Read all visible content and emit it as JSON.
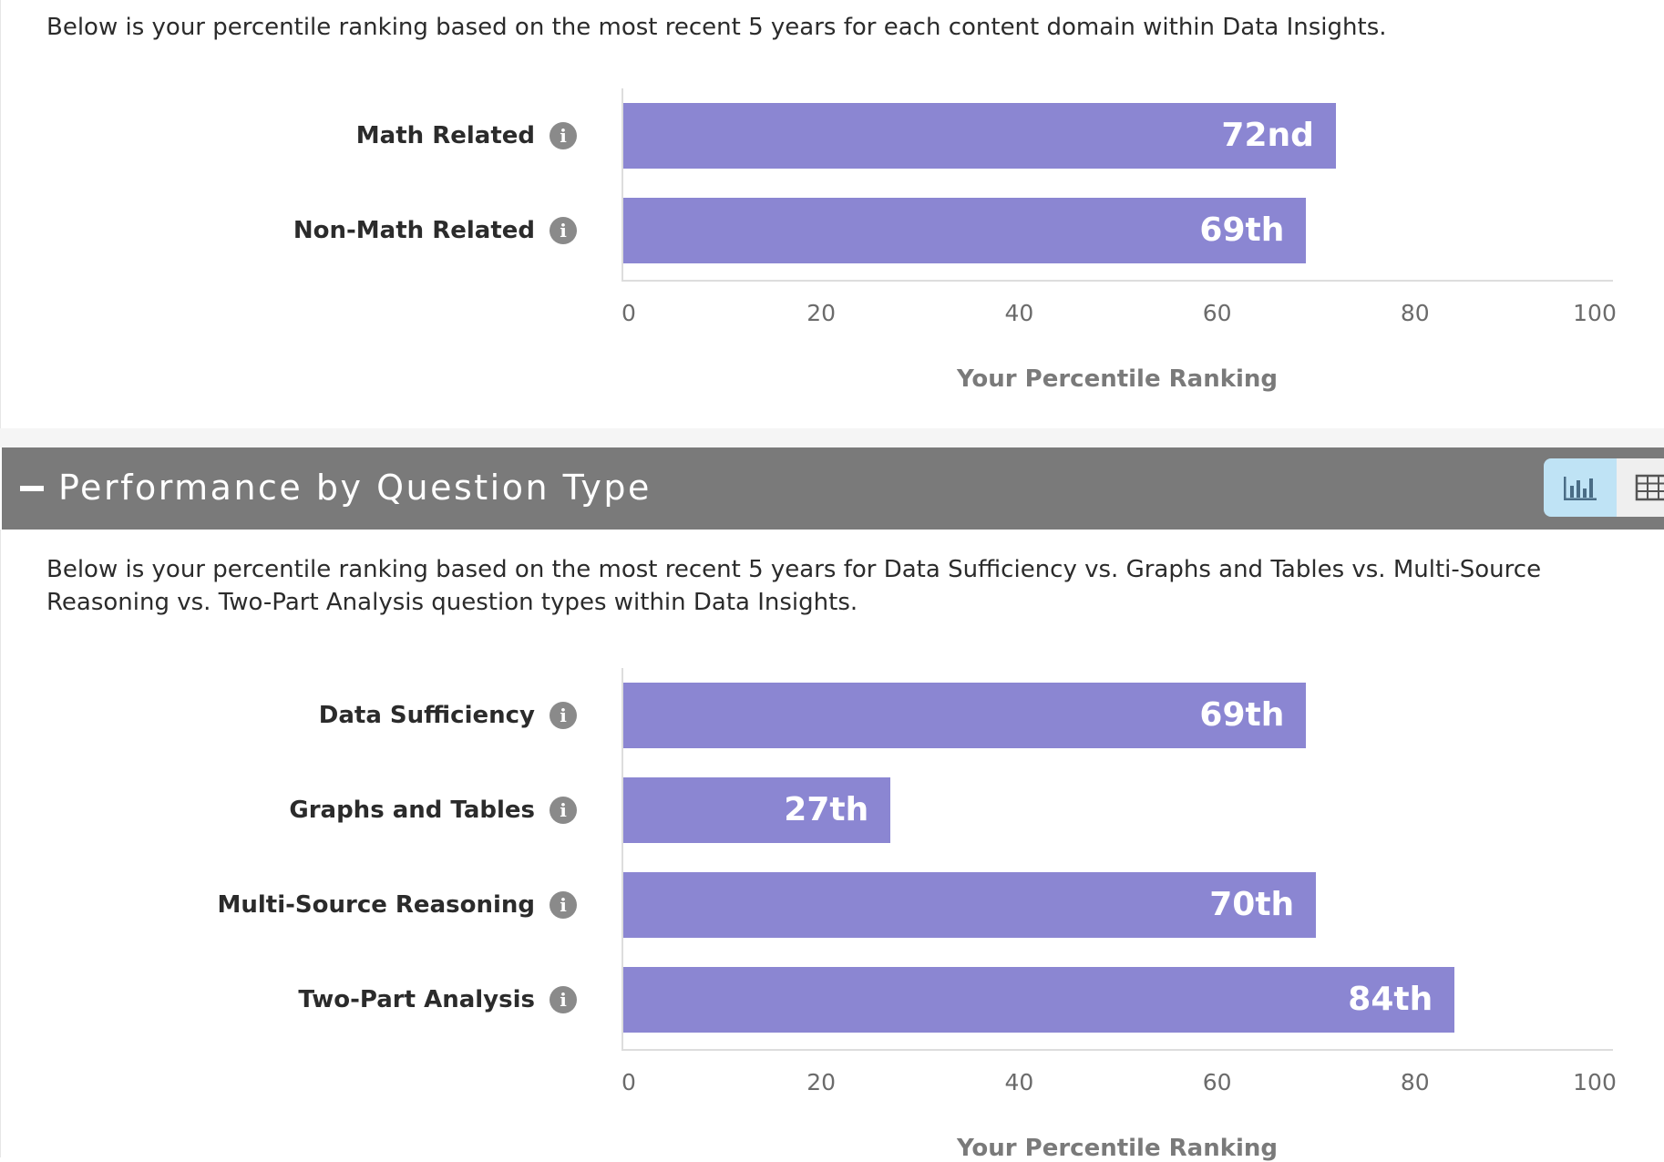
{
  "content_domain": {
    "description": "Below is your percentile ranking based on the most recent 5 years for each content domain within Data Insights.",
    "chart_data": {
      "type": "bar",
      "orientation": "horizontal",
      "categories": [
        "Math Related",
        "Non-Math Related"
      ],
      "values": [
        72,
        69
      ],
      "value_labels": [
        "72nd",
        "69th"
      ],
      "xlabel": "Your Percentile Ranking",
      "xlim": [
        0,
        100
      ],
      "ticks": [
        "0",
        "20",
        "40",
        "60",
        "80",
        "100"
      ],
      "bar_color": "#8b86d2"
    }
  },
  "question_type_section": {
    "title": "Performance by Question Type",
    "collapse_icon": "minus-icon",
    "view_toggle": {
      "chart_icon": "bar-chart-icon",
      "table_icon": "table-grid-icon",
      "active": "chart",
      "active_color": "#bfe3f5"
    },
    "header_color": "#7a7a7a",
    "description": "Below is your percentile ranking based on the most recent 5 years for Data Sufficiency vs. Graphs and Tables vs. Multi-Source Reasoning vs. Two-Part Analysis question types within Data Insights.",
    "chart_data": {
      "type": "bar",
      "orientation": "horizontal",
      "categories": [
        "Data Sufficiency",
        "Graphs and Tables",
        "Multi-Source Reasoning",
        "Two-Part Analysis"
      ],
      "values": [
        69,
        27,
        70,
        84
      ],
      "value_labels": [
        "69th",
        "27th",
        "70th",
        "84th"
      ],
      "xlabel": "Your Percentile Ranking",
      "xlim": [
        0,
        100
      ],
      "ticks": [
        "0",
        "20",
        "40",
        "60",
        "80",
        "100"
      ],
      "bar_color": "#8b86d2"
    }
  },
  "info_icon": "info-icon"
}
